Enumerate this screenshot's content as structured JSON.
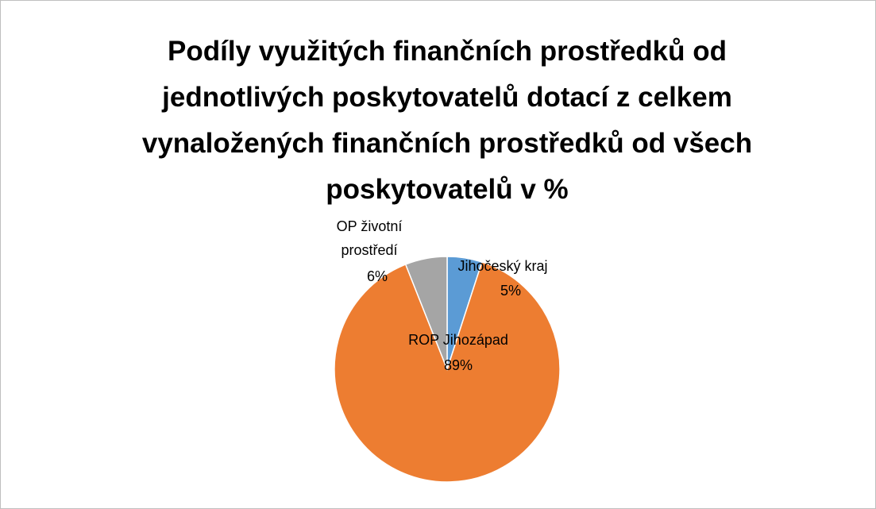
{
  "chart_data": {
    "type": "pie",
    "title": "Podíly využitých finančních prostředků od jednotlivých poskytovatelů dotací z celkem vynaložených finančních prostředků od všech poskytovatelů v %",
    "categories": [
      "Jihočeský kraj",
      "ROP Jihozápad",
      "OP životní prostředí"
    ],
    "values": [
      5,
      89,
      6
    ],
    "value_labels": [
      "5%",
      "89%",
      "6%"
    ],
    "colors": [
      "#5b9bd5",
      "#ed7d31",
      "#a5a5a5"
    ]
  }
}
